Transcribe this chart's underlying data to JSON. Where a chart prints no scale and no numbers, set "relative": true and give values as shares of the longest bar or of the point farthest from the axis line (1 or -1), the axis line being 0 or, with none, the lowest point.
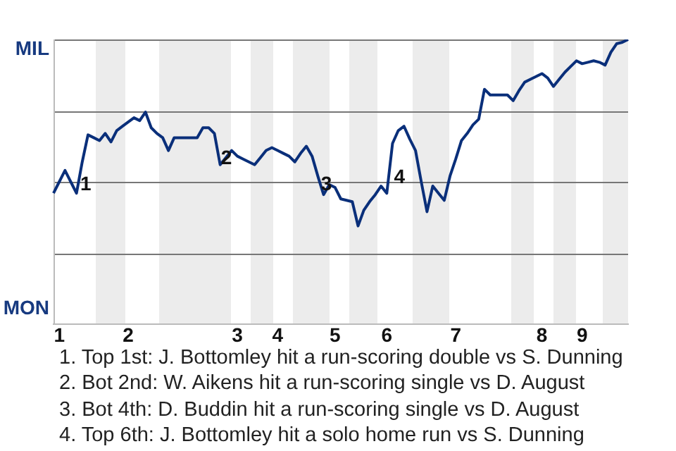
{
  "chart_data": {
    "type": "line",
    "relative": true,
    "categories": [
      null,
      "1",
      null,
      null,
      null,
      null,
      null,
      null,
      null,
      null,
      null,
      null,
      null,
      "2",
      null,
      null,
      null,
      null,
      null,
      null,
      null,
      null,
      null,
      null,
      null,
      null,
      null,
      null,
      null,
      null,
      null,
      null,
      "3",
      null,
      null,
      null,
      null,
      null,
      null,
      "4",
      null,
      null,
      null,
      null,
      null,
      null,
      null,
      null,
      null,
      "5",
      null,
      null,
      null,
      null,
      null,
      null,
      null,
      null,
      "6",
      null,
      null,
      null,
      null,
      null,
      null,
      null,
      null,
      null,
      null,
      null,
      "7",
      null,
      null,
      null,
      null,
      null,
      null,
      null,
      null,
      null,
      null,
      null,
      null,
      null,
      null,
      "8",
      null,
      null,
      null,
      null,
      null,
      null,
      "9",
      null,
      null,
      null,
      null,
      null,
      null,
      null,
      null
    ],
    "series": [
      {
        "color": "#0a2f7a",
        "values": [
          0.46,
          0.5,
          0.54,
          0.5,
          0.46,
          0.57,
          0.665,
          0.655,
          0.645,
          0.67,
          0.64,
          0.68,
          0.695,
          0.71,
          0.725,
          0.715,
          0.745,
          0.69,
          0.67,
          0.655,
          0.61,
          0.655,
          0.655,
          0.655,
          0.655,
          0.655,
          0.69,
          0.69,
          0.67,
          0.56,
          0.585,
          0.61,
          0.59,
          0.58,
          0.57,
          0.56,
          0.585,
          0.61,
          0.62,
          0.61,
          0.6,
          0.59,
          0.57,
          0.6,
          0.625,
          0.59,
          0.52,
          0.455,
          0.49,
          0.48,
          0.44,
          0.435,
          0.43,
          0.345,
          0.4,
          0.43,
          0.455,
          0.485,
          0.46,
          0.635,
          0.68,
          0.695,
          0.65,
          0.61,
          0.5,
          0.395,
          0.485,
          0.46,
          0.435,
          0.52,
          0.58,
          0.645,
          0.67,
          0.7,
          0.72,
          0.825,
          0.805,
          0.805,
          0.805,
          0.805,
          0.785,
          0.82,
          0.85,
          0.86,
          0.87,
          0.88,
          0.865,
          0.835,
          0.86,
          0.885,
          0.905,
          0.925,
          0.915,
          0.92,
          0.925,
          0.92,
          0.91,
          0.955,
          0.985,
          0.99,
          1
        ]
      }
    ],
    "grid": "y",
    "marker": "none",
    "line_style": "solid",
    "annotations": [
      "MIL",
      "MON",
      "1",
      "2",
      "3",
      "4",
      "1. Top 1st: J. Bottomley hit a run-scoring double vs S. Dunning",
      "2. Bot 2nd: W. Aikens hit a run-scoring single vs D. August",
      "3. Bot 4th: D. Buddin hit a run-scoring single vs D. August",
      "4. Top 6th: J. Bottomley hit a solo home run vs S. Dunning"
    ]
  }
}
